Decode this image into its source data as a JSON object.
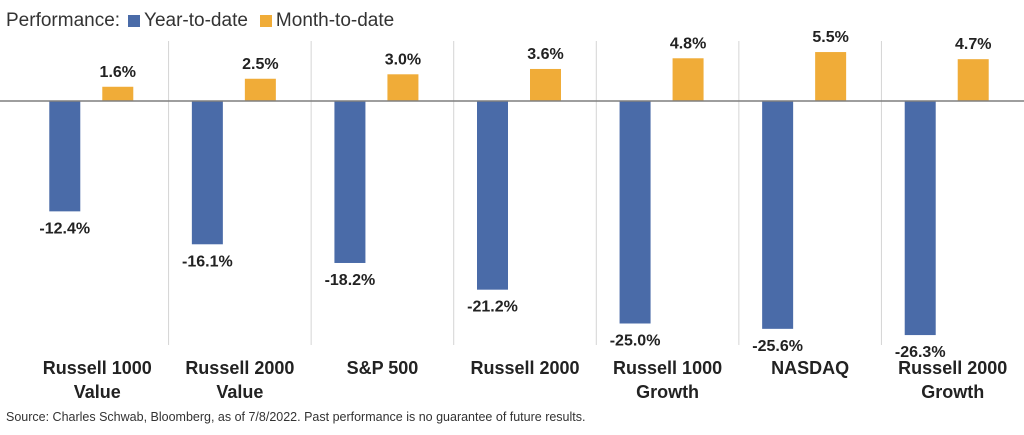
{
  "legend": {
    "title": "Performance:",
    "items": [
      {
        "name": "Year-to-date",
        "color": "#4a6ba8"
      },
      {
        "name": "Month-to-date",
        "color": "#f0ac38"
      }
    ]
  },
  "source": "Source: Charles Schwab, Bloomberg, as of 7/8/2022. Past performance is no guarantee of future results.",
  "chart_data": {
    "type": "bar",
    "title": "",
    "xlabel": "",
    "ylabel": "",
    "categories": [
      [
        "Russell 1000",
        "Value"
      ],
      [
        "Russell 2000",
        "Value"
      ],
      [
        "S&P 500"
      ],
      [
        "Russell 2000"
      ],
      [
        "Russell 1000",
        "Growth"
      ],
      [
        "NASDAQ"
      ],
      [
        "Russell 2000",
        "Growth"
      ]
    ],
    "series": [
      {
        "name": "Year-to-date",
        "color": "#4a6ba8",
        "values": [
          -12.4,
          -16.1,
          -18.2,
          -21.2,
          -25.0,
          -25.6,
          -26.3
        ],
        "labels": [
          "-12.4%",
          "-16.1%",
          "-18.2%",
          "-21.2%",
          "-25.0%",
          "-25.6%",
          "-26.3%"
        ]
      },
      {
        "name": "Month-to-date",
        "color": "#f0ac38",
        "values": [
          1.6,
          2.5,
          3.0,
          3.6,
          4.8,
          5.5,
          4.7
        ],
        "labels": [
          "1.6%",
          "2.5%",
          "3.0%",
          "3.6%",
          "4.8%",
          "5.5%",
          "4.7%"
        ]
      }
    ],
    "grid": false,
    "legend_position": "top-left"
  }
}
